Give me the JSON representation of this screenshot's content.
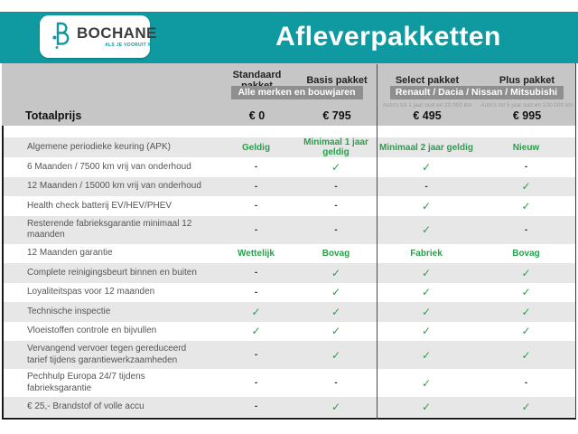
{
  "header": {
    "logo": {
      "name": "BOCHANE",
      "tagline": "ALS JE VOORUIT WIL"
    },
    "title": "Afleverpakketten"
  },
  "packages": {
    "labels": [
      "Standaard pakket",
      "Basis pakket",
      "Select pakket",
      "Plus pakket"
    ]
  },
  "badges": {
    "left": "Alle merken en bouwjaren",
    "right": "Renault / Dacia / Nissan / Mitsubishi"
  },
  "captions": {
    "select": "Auto's tot 1 jaar oud en 20.000 km",
    "plus": "Auto's tot 5 jaar oud en 100.000 km"
  },
  "totaalprijs": {
    "label": "Totaalprijs",
    "values": [
      "€ 0",
      "€ 795",
      "€ 495",
      "€ 995"
    ]
  },
  "table": {
    "rows": [
      {
        "label": "Algemene periodieke keuring (APK)",
        "values": [
          "Geldig",
          "Minimaal 1 jaar geldig",
          "Minimaal 2 jaar geldig",
          "Nieuw"
        ]
      },
      {
        "label": "6 Maanden / 7500 km vrij van onderhoud",
        "values": [
          "-",
          "✓",
          "✓",
          "-"
        ]
      },
      {
        "label": "12 Maanden / 15000 km vrij van onderhoud",
        "values": [
          "-",
          "-",
          "-",
          "✓"
        ]
      },
      {
        "label": "Health check batterij EV/HEV/PHEV",
        "values": [
          "-",
          "-",
          "✓",
          "✓"
        ]
      },
      {
        "label": "Resterende fabrieksgarantie minimaal 12 maanden",
        "values": [
          "-",
          "-",
          "✓",
          "-"
        ]
      },
      {
        "label": "12 Maanden garantie",
        "values": [
          "Wettelijk",
          "Bovag",
          "Fabriek",
          "Bovag"
        ]
      },
      {
        "label": "Complete reinigingsbeurt binnen en buiten",
        "values": [
          "-",
          "✓",
          "✓",
          "✓"
        ]
      },
      {
        "label": "Loyaliteitspas voor 12 maanden",
        "values": [
          "-",
          "✓",
          "✓",
          "✓"
        ]
      },
      {
        "label": "Technische inspectie",
        "values": [
          "✓",
          "✓",
          "✓",
          "✓"
        ]
      },
      {
        "label": "Vloeistoffen controle en bijvullen",
        "values": [
          "✓",
          "✓",
          "✓",
          "✓"
        ]
      },
      {
        "label": "Vervangend vervoer tegen gereduceerd tarief tijdens garantiewerkzaamheden",
        "values": [
          "-",
          "✓",
          "✓",
          "✓"
        ]
      },
      {
        "label": "Pechhulp Europa 24/7 tijdens fabrieksgarantie",
        "values": [
          "-",
          "-",
          "✓",
          "-"
        ]
      },
      {
        "label": "€ 25,- Brandstof of volle accu",
        "values": [
          "-",
          "✓",
          "✓",
          "✓"
        ]
      }
    ]
  },
  "colors": {
    "teal": "#0f9aa1",
    "green": "#28a04b",
    "badge_gray": "#8f8f8f",
    "header_gray": "#c6c6c6",
    "row_gray": "#e7e7e7"
  },
  "chart_data": {
    "type": "table",
    "title": "Afleverpakketten",
    "columns": [
      "",
      "Standaard pakket",
      "Basis pakket",
      "Select pakket",
      "Plus pakket"
    ],
    "column_notes": [
      "",
      "Alle merken en bouwjaren",
      "Alle merken en bouwjaren",
      "Renault / Dacia / Nissan / Mitsubishi — Auto's tot 1 jaar oud en 20.000 km",
      "Renault / Dacia / Nissan / Mitsubishi — Auto's tot 5 jaar oud en 100.000 km"
    ],
    "rows": [
      [
        "Totaalprijs",
        "€ 0",
        "€ 795",
        "€ 495",
        "€ 995"
      ],
      [
        "Algemene periodieke keuring (APK)",
        "Geldig",
        "Minimaal 1 jaar geldig",
        "Minimaal 2 jaar geldig",
        "Nieuw"
      ],
      [
        "6 Maanden / 7500 km vrij van onderhoud",
        "-",
        "✓",
        "✓",
        "-"
      ],
      [
        "12 Maanden / 15000 km vrij van onderhoud",
        "-",
        "-",
        "-",
        "✓"
      ],
      [
        "Health check batterij EV/HEV/PHEV",
        "-",
        "-",
        "✓",
        "✓"
      ],
      [
        "Resterende fabrieksgarantie minimaal 12 maanden",
        "-",
        "-",
        "✓",
        "-"
      ],
      [
        "12 Maanden garantie",
        "Wettelijk",
        "Bovag",
        "Fabriek",
        "Bovag"
      ],
      [
        "Complete reinigingsbeurt binnen en buiten",
        "-",
        "✓",
        "✓",
        "✓"
      ],
      [
        "Loyaliteitspas voor 12 maanden",
        "-",
        "✓",
        "✓",
        "✓"
      ],
      [
        "Technische inspectie",
        "✓",
        "✓",
        "✓",
        "✓"
      ],
      [
        "Vloeistoffen controle en bijvullen",
        "✓",
        "✓",
        "✓",
        "✓"
      ],
      [
        "Vervangend vervoer tegen gereduceerd tarief tijdens garantiewerkzaamheden",
        "-",
        "✓",
        "✓",
        "✓"
      ],
      [
        "Pechhulp Europa 24/7 tijdens fabrieksgarantie",
        "-",
        "-",
        "✓",
        "-"
      ],
      [
        "€ 25,- Brandstof of volle accu",
        "-",
        "✓",
        "✓",
        "✓"
      ]
    ]
  }
}
